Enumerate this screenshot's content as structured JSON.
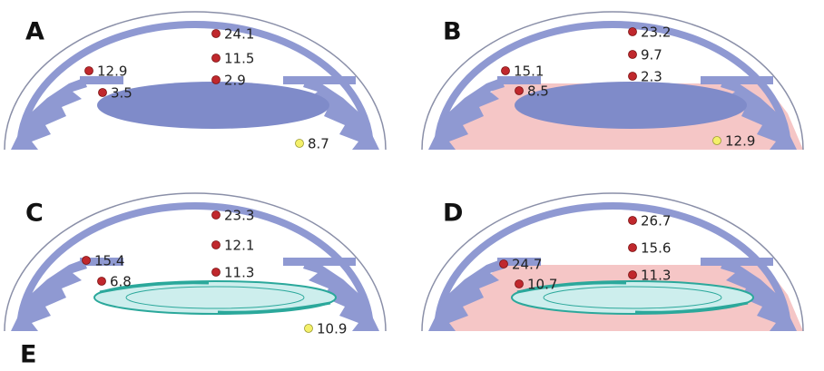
{
  "panels": [
    {
      "label": "A",
      "points": [
        24.1,
        11.5,
        2.9,
        12.9,
        3.5,
        8.7
      ]
    },
    {
      "label": "B",
      "points": [
        23.2,
        9.7,
        2.3,
        15.1,
        8.5,
        12.9
      ]
    },
    {
      "label": "C",
      "points": [
        23.3,
        12.1,
        11.3,
        15.4,
        6.8,
        10.9
      ]
    },
    {
      "label": "D",
      "points": [
        26.7,
        15.6,
        11.3,
        24.7,
        10.7
      ]
    }
  ],
  "footer": {
    "label": "E"
  }
}
